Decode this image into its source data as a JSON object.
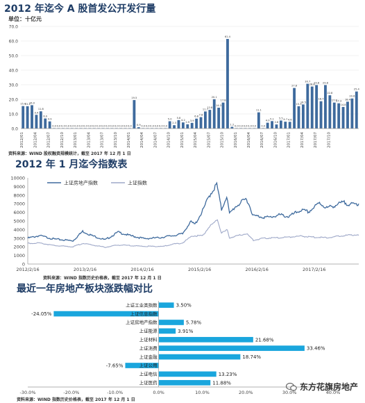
{
  "chart1": {
    "title": "2012 年迄今 A 股首发公开发行量",
    "unit": "单位：十亿元",
    "source": "资料来源：WIND 股权融资规模统计，截至 2017 年 12 月 1 日",
    "chart_data": {
      "type": "bar",
      "ylim": [
        0,
        70
      ],
      "yticks": [
        "0.0",
        "10.0",
        "20.0",
        "30.0",
        "40.0",
        "50.0",
        "60.0",
        "70.0"
      ],
      "xtick_labels": [
        "2012/01",
        "2012/04",
        "2012/07",
        "2012/10",
        "2013/01",
        "2013/04",
        "2013/07",
        "2013/10",
        "2014/01",
        "2014/04",
        "2014/07",
        "2014/10",
        "2015/01",
        "2015/04",
        "2015/07",
        "2015/10",
        "2016/01",
        "2016/04",
        "2016/07",
        "2016/10",
        "2017/01",
        "2017/04",
        "2017/07",
        "2017/10"
      ],
      "values": [
        15.4,
        15.3,
        16.0,
        9.4,
        11.8,
        6.9,
        4.9,
        0.0,
        0.0,
        0.0,
        0.0,
        0.0,
        0.0,
        0.0,
        0.0,
        0.0,
        0.0,
        0.0,
        0.0,
        0.0,
        0.0,
        0.0,
        0.0,
        0.0,
        0.0,
        19.5,
        0.9,
        0.0,
        0.0,
        0.0,
        0.0,
        0.0,
        0.0,
        5.0,
        2.3,
        5.8,
        4.2,
        2.9,
        3.9,
        6.8,
        7.8,
        11.7,
        12.8,
        20.1,
        14.3,
        17.8,
        61.4,
        1.2,
        0.0,
        0.0,
        0.0,
        0.0,
        0.0,
        11.1,
        0.0,
        4.0,
        5.1,
        2.8,
        5.5,
        4.7,
        4.6,
        27.8,
        15.3,
        16.5,
        30.7,
        28.8,
        29.8,
        18.7,
        29.8,
        22.8,
        17.8,
        17.3,
        14.8,
        18.4,
        20.6,
        25.4
      ],
      "labels": [
        "15.4",
        "15.3",
        "16.0",
        "9.4",
        "11.8",
        "6.9",
        "4.9",
        "0.0",
        "0.0",
        "0.0",
        "0.0",
        "0.0",
        "0.0",
        "0.0",
        "0.0",
        "0.0",
        "0.0",
        "0.0",
        "0.0",
        "0.0",
        "0.0",
        "0.0",
        "0.0",
        "0.0",
        "0.0",
        "19.5",
        "0.9",
        "0.0",
        "0.0",
        "0.0",
        "0.0",
        "0.0",
        "0.0",
        "5.0",
        "2.3",
        "5.8",
        "4.2",
        "2.9",
        "3.9",
        "6.8",
        "7.8",
        "11.7",
        "12.8",
        "20.1",
        "14.3",
        "17.8",
        "61.4",
        "1.2",
        "0.0",
        "0.0",
        "0.0",
        "0.0",
        "0.0",
        "11.1",
        "0.0",
        "4.0",
        "5.1",
        "2.8",
        "5.5",
        "4.7",
        "4.6",
        "27.8",
        "15.3",
        "16.5",
        "30.7",
        "28.8",
        "29.8",
        "18.7",
        "29.8",
        "22.8",
        "17.8",
        "17.3",
        "14.8",
        "18.4",
        "20.6",
        "25.4"
      ],
      "bar_color": "#3e6a9d"
    }
  },
  "chart2": {
    "title": "2012 年 1 月迄今指数表",
    "source": "资料来源：WIND 指数历史价格表，截至 2017 年 12 月 1 日",
    "chart_data": {
      "type": "line",
      "ylim": [
        0,
        10000
      ],
      "yticks": [
        "0",
        "1000",
        "2000",
        "3000",
        "4000",
        "5000",
        "6000",
        "7000",
        "8000",
        "9000",
        "10000"
      ],
      "xtick_labels": [
        "2012/2/16",
        "2013/2/16",
        "2014/2/16",
        "2015/2/16",
        "2016/2/16",
        "2017/2/16"
      ],
      "x_start": "2012-02-16",
      "x_end": "2017-12-01",
      "series": [
        {
          "name": "上证房地产指数",
          "color": "#3e6a9d",
          "points": [
            [
              "2012-02-16",
              3000
            ],
            [
              "2012-05-01",
              3300
            ],
            [
              "2012-08-01",
              2900
            ],
            [
              "2012-12-01",
              2700
            ],
            [
              "2013-02-01",
              3800
            ],
            [
              "2013-04-01",
              3300
            ],
            [
              "2013-06-25",
              2800
            ],
            [
              "2013-09-15",
              3700
            ],
            [
              "2013-12-01",
              3300
            ],
            [
              "2014-03-01",
              2950
            ],
            [
              "2014-06-01",
              3050
            ],
            [
              "2014-09-01",
              3300
            ],
            [
              "2014-11-01",
              3500
            ],
            [
              "2014-12-20",
              4900
            ],
            [
              "2015-01-20",
              4600
            ],
            [
              "2015-03-10",
              6200
            ],
            [
              "2015-04-20",
              7900
            ],
            [
              "2015-06-08",
              9250
            ],
            [
              "2015-07-08",
              6300
            ],
            [
              "2015-08-10",
              7900
            ],
            [
              "2015-08-28",
              5800
            ],
            [
              "2015-10-01",
              6600
            ],
            [
              "2015-12-15",
              7600
            ],
            [
              "2016-01-28",
              5600
            ],
            [
              "2016-03-15",
              5500
            ],
            [
              "2016-05-01",
              5400
            ],
            [
              "2016-07-15",
              5700
            ],
            [
              "2016-09-10",
              5500
            ],
            [
              "2016-11-25",
              6250
            ],
            [
              "2017-01-15",
              6050
            ],
            [
              "2017-03-25",
              7100
            ],
            [
              "2017-05-10",
              6500
            ],
            [
              "2017-07-01",
              6800
            ],
            [
              "2017-08-25",
              7150
            ],
            [
              "2017-10-15",
              6900
            ],
            [
              "2017-12-01",
              7000
            ]
          ]
        },
        {
          "name": "上证指数",
          "color": "#9ea8c8",
          "points": [
            [
              "2012-02-16",
              2400
            ],
            [
              "2012-05-01",
              2450
            ],
            [
              "2012-08-01",
              2150
            ],
            [
              "2012-12-01",
              2000
            ],
            [
              "2013-02-01",
              2400
            ],
            [
              "2013-06-25",
              1950
            ],
            [
              "2013-09-15",
              2200
            ],
            [
              "2013-12-01",
              2150
            ],
            [
              "2014-03-01",
              2050
            ],
            [
              "2014-07-01",
              2050
            ],
            [
              "2014-09-01",
              2300
            ],
            [
              "2014-11-01",
              2450
            ],
            [
              "2014-12-31",
              3250
            ],
            [
              "2015-03-10",
              3300
            ],
            [
              "2015-04-20",
              4300
            ],
            [
              "2015-06-12",
              5150
            ],
            [
              "2015-07-08",
              3600
            ],
            [
              "2015-08-14",
              3950
            ],
            [
              "2015-08-28",
              3050
            ],
            [
              "2015-12-15",
              3550
            ],
            [
              "2016-01-28",
              2750
            ],
            [
              "2016-04-01",
              3000
            ],
            [
              "2016-07-15",
              3050
            ],
            [
              "2016-11-25",
              3250
            ],
            [
              "2017-01-15",
              3150
            ],
            [
              "2017-05-10",
              3050
            ],
            [
              "2017-08-25",
              3300
            ],
            [
              "2017-11-15",
              3400
            ],
            [
              "2017-12-01",
              3320
            ]
          ]
        }
      ]
    }
  },
  "chart3": {
    "title": "最近一年房地产板块涨跌幅对比",
    "source": "资料来源：WIND 指数历史价格表，截至 2017 年 12 月 1 日",
    "chart_data": {
      "type": "bar",
      "orientation": "horizontal",
      "xlim": [
        -30,
        40
      ],
      "xticks": [
        "-30.0%",
        "-20.0%",
        "-10.0%",
        "0.0%",
        "10.0%",
        "20.0%",
        "30.0%",
        "40.0%"
      ],
      "categories": [
        "上证工业类指数",
        "上证信息指数",
        "上证房地产指数",
        "上证能源",
        "上证材料",
        "上证消费",
        "上证金融",
        "上证公用",
        "上证电信",
        "上证医药"
      ],
      "values": [
        3.5,
        -24.05,
        5.78,
        3.91,
        21.68,
        33.46,
        18.74,
        -7.65,
        13.23,
        11.88
      ],
      "labels": [
        "3.50%",
        "-24.05%",
        "5.78%",
        "3.91%",
        "21.68%",
        "33.46%",
        "18.74%",
        "-7.65%",
        "13.23%",
        "11.88%"
      ],
      "bar_color": "#1aa6dd"
    }
  },
  "watermark": {
    "text": "东方花旗房地产"
  }
}
